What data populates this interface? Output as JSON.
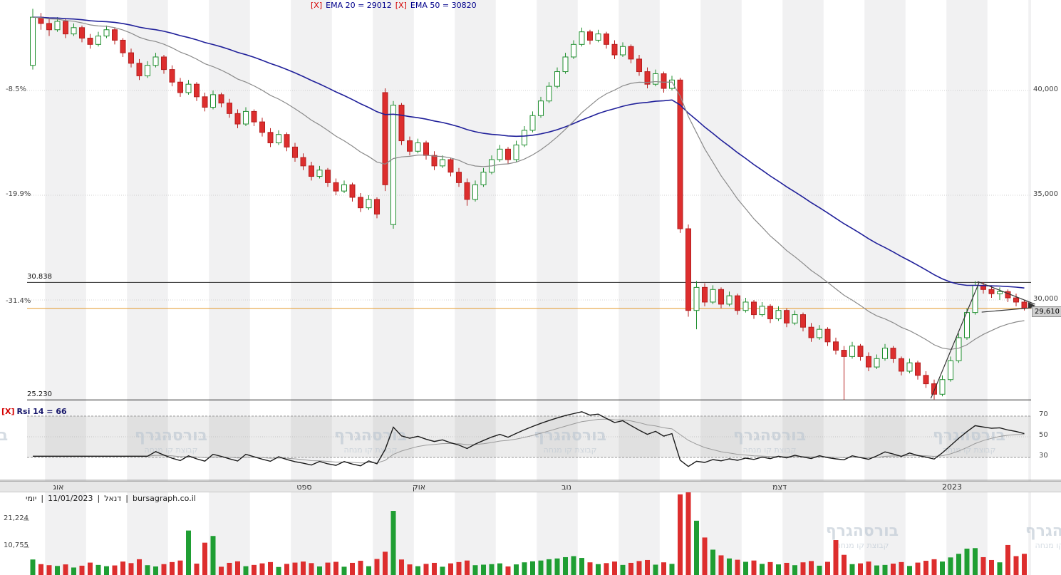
{
  "legend": {
    "close": "[X]",
    "ema20": "EMA 20 = 29012",
    "ema50": "EMA 50 = 30820"
  },
  "rsi": {
    "close": "[X]",
    "label": "Rsi 14 = 66"
  },
  "watermark": {
    "title": "בורסהגרף",
    "subtitle": "קבוצת קו מנחה"
  },
  "status": {
    "tokens": [
      "יומי",
      "|",
      "11/01/2023",
      "|",
      "דנאל",
      "|",
      "bursagraph.co.il"
    ]
  },
  "axes": {
    "price": [
      "40,000",
      "35,000",
      "30,000"
    ],
    "pct": [
      "-8.5%",
      "-19.9%",
      "-31.4%"
    ],
    "rsi": [
      "70",
      "50",
      "30"
    ],
    "volume": [
      "21,224",
      "10,755"
    ]
  },
  "chart_data": {
    "type": "candlestick",
    "instrument": "דנאל",
    "timeframe": "יומי",
    "last_date": "11/01/2023",
    "source": "bursagraph.co.il",
    "last_price": 29610,
    "last_price_label": "29,610",
    "indicators": [
      {
        "name": "EMA",
        "period": 20,
        "value": 29012,
        "color": "#8a8a8a"
      },
      {
        "name": "EMA",
        "period": 50,
        "value": 30820,
        "color": "#20209a"
      },
      {
        "name": "RSI",
        "period": 14,
        "value": 66
      }
    ],
    "y_axis_prices": [
      40000,
      35000,
      30000
    ],
    "rsi_scale": [
      70,
      50,
      30
    ],
    "volume_ticks": [
      21224,
      10755
    ],
    "levels": [
      {
        "price": 30838,
        "label": "30.838",
        "color": "#2b2b2b"
      },
      {
        "price": 25230,
        "label": "25.230",
        "color": "#2b2b2b"
      },
      {
        "price": 29600,
        "label": "",
        "color": "#e49a2d"
      }
    ],
    "trendlines": [
      [
        109.6,
        25300,
        115.5,
        30850
      ],
      [
        115.3,
        30880,
        122.3,
        29800
      ],
      [
        115.8,
        29420,
        122.3,
        29640
      ]
    ],
    "month_ticks": [
      {
        "label": "אוג",
        "index": 3
      },
      {
        "label": "ספט",
        "index": 33
      },
      {
        "label": "אוק",
        "index": 47
      },
      {
        "label": "נוב",
        "index": 65
      },
      {
        "label": "דצמ",
        "index": 91
      },
      {
        "label": "2023",
        "index": 112
      }
    ],
    "colors": {
      "up": "#1f8f2f",
      "up_fill": "#ffffff",
      "up_volume": "#1f9e33",
      "down": "#dd2e2e",
      "down_stroke": "#b51f1f",
      "ema20": "#8a8a8a",
      "ema50": "#20209a",
      "rsi_line": "#1a1a1a",
      "rsi_signal": "#9a9a9a",
      "trend": "#333333"
    },
    "candles": [
      [
        41200,
        43900,
        41000,
        43500,
        6000
      ],
      [
        43500,
        43700,
        42900,
        43200,
        4200
      ],
      [
        43200,
        43400,
        42600,
        42900,
        3800
      ],
      [
        42900,
        43500,
        42800,
        43300,
        3500
      ],
      [
        43300,
        43400,
        42500,
        42700,
        4100
      ],
      [
        42700,
        43200,
        42600,
        43000,
        2900
      ],
      [
        43000,
        43100,
        42300,
        42500,
        3600
      ],
      [
        42500,
        42700,
        42000,
        42200,
        4800
      ],
      [
        42200,
        42800,
        42100,
        42600,
        3900
      ],
      [
        42600,
        43100,
        42500,
        42900,
        3400
      ],
      [
        42900,
        43000,
        42200,
        42400,
        3700
      ],
      [
        42400,
        42500,
        41600,
        41800,
        5200
      ],
      [
        41800,
        42000,
        41100,
        41300,
        4600
      ],
      [
        41300,
        41500,
        40500,
        40700,
        6100
      ],
      [
        40700,
        41400,
        40600,
        41200,
        3800
      ],
      [
        41200,
        41800,
        41100,
        41600,
        3300
      ],
      [
        41600,
        41700,
        40800,
        41000,
        4200
      ],
      [
        41000,
        41200,
        40200,
        40400,
        5000
      ],
      [
        40400,
        40600,
        39700,
        39900,
        5600
      ],
      [
        39900,
        40500,
        39800,
        40300,
        17200
      ],
      [
        40300,
        40400,
        39500,
        39700,
        4400
      ],
      [
        39700,
        39900,
        39000,
        39200,
        12500
      ],
      [
        39200,
        40000,
        39100,
        39800,
        15100
      ],
      [
        39800,
        39900,
        39200,
        39400,
        3200
      ],
      [
        39400,
        39600,
        38700,
        38900,
        4700
      ],
      [
        38900,
        39100,
        38200,
        38400,
        5300
      ],
      [
        38400,
        39200,
        38300,
        39000,
        3400
      ],
      [
        39000,
        39100,
        38300,
        38500,
        3900
      ],
      [
        38500,
        38700,
        37800,
        38000,
        4500
      ],
      [
        38000,
        38200,
        37300,
        37500,
        5000
      ],
      [
        37500,
        38100,
        37400,
        37900,
        3100
      ],
      [
        37900,
        38000,
        37100,
        37300,
        4300
      ],
      [
        37300,
        37500,
        36600,
        36800,
        4800
      ],
      [
        36800,
        37000,
        36200,
        36400,
        5200
      ],
      [
        36400,
        36600,
        35700,
        35900,
        4600
      ],
      [
        35900,
        36400,
        35800,
        36200,
        3300
      ],
      [
        36200,
        36300,
        35400,
        35600,
        4800
      ],
      [
        35600,
        35800,
        35000,
        35200,
        5100
      ],
      [
        35200,
        35700,
        35100,
        35500,
        3200
      ],
      [
        35500,
        35600,
        34700,
        34900,
        4700
      ],
      [
        34900,
        35100,
        34200,
        34400,
        5500
      ],
      [
        34400,
        35000,
        34300,
        34800,
        3400
      ],
      [
        34800,
        34900,
        33900,
        34100,
        6200
      ],
      [
        39900,
        40100,
        35200,
        35500,
        9000
      ],
      [
        33600,
        39500,
        33400,
        39300,
        24800
      ],
      [
        39300,
        39400,
        37400,
        37600,
        6000
      ],
      [
        37600,
        37800,
        36900,
        37100,
        4100
      ],
      [
        37100,
        37700,
        37000,
        37500,
        3400
      ],
      [
        37500,
        37600,
        36700,
        36900,
        4300
      ],
      [
        36900,
        37100,
        36200,
        36400,
        4700
      ],
      [
        36400,
        36900,
        36300,
        36700,
        3200
      ],
      [
        36700,
        36800,
        35900,
        36100,
        4500
      ],
      [
        36100,
        36300,
        35400,
        35600,
        5000
      ],
      [
        35600,
        35800,
        34500,
        34800,
        5600
      ],
      [
        34800,
        35700,
        34700,
        35500,
        3800
      ],
      [
        35500,
        36300,
        35400,
        36100,
        4000
      ],
      [
        36100,
        36900,
        36000,
        36700,
        4200
      ],
      [
        36700,
        37400,
        36600,
        37200,
        4500
      ],
      [
        37200,
        37300,
        36500,
        36700,
        3300
      ],
      [
        36700,
        37600,
        36600,
        37400,
        4100
      ],
      [
        37400,
        38300,
        37300,
        38100,
        4900
      ],
      [
        38100,
        39000,
        38000,
        38800,
        5300
      ],
      [
        38800,
        39700,
        38700,
        39500,
        5600
      ],
      [
        39500,
        40400,
        39400,
        40200,
        6100
      ],
      [
        40200,
        41100,
        40100,
        40900,
        6400
      ],
      [
        40900,
        41800,
        40800,
        41600,
        6900
      ],
      [
        41600,
        42400,
        41500,
        42200,
        7300
      ],
      [
        42200,
        43000,
        42100,
        42800,
        6600
      ],
      [
        42800,
        42900,
        42200,
        42400,
        4900
      ],
      [
        42400,
        42900,
        42300,
        42700,
        4200
      ],
      [
        42700,
        42800,
        42000,
        42200,
        4600
      ],
      [
        42200,
        42400,
        41500,
        41700,
        5200
      ],
      [
        41700,
        42300,
        41600,
        42100,
        3900
      ],
      [
        42100,
        42200,
        41300,
        41500,
        4700
      ],
      [
        41500,
        41700,
        40700,
        40900,
        5400
      ],
      [
        40900,
        41100,
        40100,
        40300,
        5800
      ],
      [
        40300,
        41000,
        40200,
        40800,
        4000
      ],
      [
        40800,
        40900,
        39900,
        40100,
        4900
      ],
      [
        40100,
        40700,
        40000,
        40500,
        4300
      ],
      [
        40500,
        40600,
        33200,
        33400,
        31200
      ],
      [
        33400,
        33600,
        29200,
        29500,
        32600
      ],
      [
        29500,
        30900,
        28600,
        30600,
        21000
      ],
      [
        30600,
        30800,
        29700,
        29900,
        14500
      ],
      [
        29900,
        30700,
        29800,
        30500,
        9800
      ],
      [
        30500,
        30600,
        29600,
        29800,
        7600
      ],
      [
        29800,
        30400,
        29700,
        30200,
        6400
      ],
      [
        30200,
        30300,
        29300,
        29500,
        5900
      ],
      [
        29500,
        30100,
        29400,
        29900,
        5100
      ],
      [
        29900,
        30000,
        29100,
        29300,
        5600
      ],
      [
        29300,
        29900,
        29200,
        29700,
        4300
      ],
      [
        29700,
        29800,
        28900,
        29100,
        5000
      ],
      [
        29100,
        29700,
        29000,
        29500,
        4100
      ],
      [
        29500,
        29600,
        28700,
        28900,
        4700
      ],
      [
        28900,
        29500,
        28800,
        29300,
        3800
      ],
      [
        29300,
        29400,
        28500,
        28700,
        4900
      ],
      [
        28700,
        28900,
        28000,
        28200,
        5400
      ],
      [
        28200,
        28800,
        28100,
        28600,
        3600
      ],
      [
        28600,
        28700,
        27800,
        28000,
        5100
      ],
      [
        28000,
        28200,
        27400,
        27600,
        13500
      ],
      [
        27600,
        27800,
        25230,
        27300,
        7800
      ],
      [
        27300,
        28000,
        27200,
        27800,
        4200
      ],
      [
        27800,
        27900,
        27100,
        27300,
        4500
      ],
      [
        27300,
        27500,
        26600,
        26800,
        5200
      ],
      [
        26800,
        27400,
        26700,
        27200,
        3700
      ],
      [
        27200,
        27900,
        27100,
        27700,
        3900
      ],
      [
        27700,
        27800,
        27000,
        27200,
        4400
      ],
      [
        27200,
        27300,
        26400,
        26600,
        5000
      ],
      [
        26600,
        27200,
        26500,
        27000,
        3500
      ],
      [
        27000,
        27100,
        26200,
        26400,
        4800
      ],
      [
        26400,
        26600,
        25800,
        26000,
        5500
      ],
      [
        26000,
        26200,
        25250,
        25500,
        6100
      ],
      [
        25500,
        26400,
        25400,
        26200,
        5200
      ],
      [
        26200,
        27300,
        26100,
        27100,
        6800
      ],
      [
        27100,
        28400,
        27000,
        28200,
        8200
      ],
      [
        28200,
        29600,
        28100,
        29400,
        10200
      ],
      [
        29400,
        30900,
        29300,
        30700,
        10400
      ],
      [
        30700,
        30850,
        30300,
        30500,
        6900
      ],
      [
        30500,
        30700,
        30100,
        30300,
        5800
      ],
      [
        30300,
        30600,
        30000,
        30400,
        4900
      ],
      [
        30400,
        30500,
        29900,
        30100,
        11600
      ],
      [
        30100,
        30300,
        29700,
        29900,
        7300
      ],
      [
        29900,
        30000,
        29500,
        29610,
        8200
      ]
    ]
  }
}
